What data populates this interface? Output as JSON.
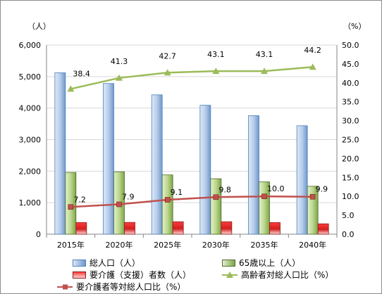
{
  "chart_data": {
    "type": "bar",
    "units": {
      "left": "（人）",
      "right": "（%）"
    },
    "categories": [
      "2015年",
      "2020年",
      "2025年",
      "2030年",
      "2035年",
      "2040年"
    ],
    "left_axis": {
      "min": 0,
      "max": 6000,
      "step": 1000,
      "tick_labels": [
        "0",
        "1,000",
        "2,000",
        "3,000",
        "4,000",
        "5,000",
        "6,000"
      ]
    },
    "right_axis": {
      "min": 0,
      "max": 50,
      "step": 5,
      "tick_labels": [
        "0.0",
        "5.0",
        "10.0",
        "15.0",
        "20.0",
        "25.0",
        "30.0",
        "35.0",
        "40.0",
        "45.0",
        "50.0"
      ]
    },
    "grid": true,
    "bar_series": [
      {
        "name": "総人口（人）",
        "values": [
          5120,
          4780,
          4420,
          4090,
          3760,
          3440
        ],
        "color": "#4f81bd"
      },
      {
        "name": "65歳以上（人）",
        "values": [
          1960,
          1980,
          1880,
          1760,
          1660,
          1520
        ],
        "color": "#9bbb59"
      },
      {
        "name": "要介護（支援）者数（人）",
        "values": [
          370,
          375,
          395,
          395,
          370,
          330
        ],
        "color": "#c0504d"
      }
    ],
    "line_series": [
      {
        "name": "高齢者対総人口比（%）",
        "values": [
          38.4,
          41.3,
          42.7,
          43.1,
          43.1,
          44.2
        ],
        "labels": [
          "38.4",
          "41.3",
          "42.7",
          "43.1",
          "43.1",
          "44.2"
        ],
        "color": "#9bbb59",
        "marker": "triangle"
      },
      {
        "name": "要介護者等対総人口比（%）",
        "values": [
          7.2,
          7.9,
          9.1,
          9.8,
          10.0,
          9.9
        ],
        "labels": [
          "7.2",
          "7.9",
          "9.1",
          "9.8",
          "10.0",
          "9.9"
        ],
        "color": "#c0504d",
        "marker": "square"
      }
    ]
  }
}
